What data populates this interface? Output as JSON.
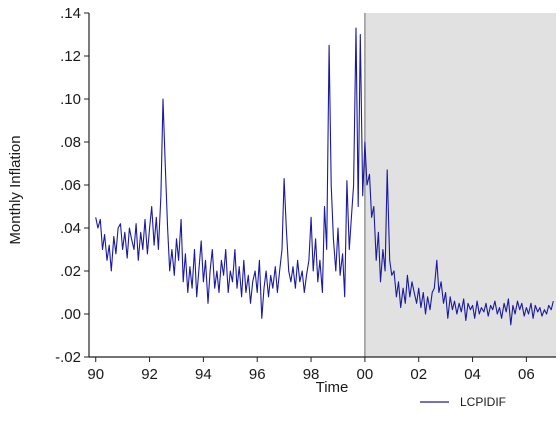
{
  "chart_data": {
    "type": "line",
    "title": "",
    "xlabel": "Time",
    "ylabel": "Monthly Inflation",
    "xlim": [
      1989.75,
      2007.1
    ],
    "ylim": [
      -0.02,
      0.14
    ],
    "x_ticks": [
      {
        "value": 1990,
        "label": "90"
      },
      {
        "value": 1992,
        "label": "92"
      },
      {
        "value": 1994,
        "label": "94"
      },
      {
        "value": 1996,
        "label": "96"
      },
      {
        "value": 1998,
        "label": "98"
      },
      {
        "value": 2000,
        "label": "00"
      },
      {
        "value": 2002,
        "label": "02"
      },
      {
        "value": 2004,
        "label": "04"
      },
      {
        "value": 2006,
        "label": "06"
      }
    ],
    "y_ticks": [
      {
        "value": 0.14,
        "label": ".14"
      },
      {
        "value": 0.12,
        "label": ".12"
      },
      {
        "value": 0.1,
        "label": ".10"
      },
      {
        "value": 0.08,
        "label": ".08"
      },
      {
        "value": 0.06,
        "label": ".06"
      },
      {
        "value": 0.04,
        "label": ".04"
      },
      {
        "value": 0.02,
        "label": ".02"
      },
      {
        "value": 0.0,
        "label": ".00"
      },
      {
        "value": -0.02,
        "label": "-.02"
      }
    ],
    "shaded_region": {
      "x_start": 2000.0,
      "x_end": 2007.1,
      "color": "#e1e1e1"
    },
    "grid": false,
    "legend_position": "bottom-right",
    "series": [
      {
        "name": "LCPIDIF",
        "color": "#1a1aa0",
        "points": [
          [
            1990.0,
            0.045
          ],
          [
            1990.08,
            0.04
          ],
          [
            1990.17,
            0.044
          ],
          [
            1990.25,
            0.03
          ],
          [
            1990.33,
            0.037
          ],
          [
            1990.42,
            0.025
          ],
          [
            1990.5,
            0.032
          ],
          [
            1990.58,
            0.02
          ],
          [
            1990.67,
            0.036
          ],
          [
            1990.75,
            0.028
          ],
          [
            1990.83,
            0.04
          ],
          [
            1990.92,
            0.042
          ],
          [
            1991.0,
            0.03
          ],
          [
            1991.08,
            0.038
          ],
          [
            1991.17,
            0.026
          ],
          [
            1991.25,
            0.04
          ],
          [
            1991.33,
            0.035
          ],
          [
            1991.42,
            0.03
          ],
          [
            1991.5,
            0.042
          ],
          [
            1991.58,
            0.025
          ],
          [
            1991.67,
            0.038
          ],
          [
            1991.75,
            0.03
          ],
          [
            1991.83,
            0.044
          ],
          [
            1991.92,
            0.028
          ],
          [
            1992.0,
            0.04
          ],
          [
            1992.08,
            0.05
          ],
          [
            1992.17,
            0.032
          ],
          [
            1992.25,
            0.045
          ],
          [
            1992.33,
            0.03
          ],
          [
            1992.42,
            0.055
          ],
          [
            1992.5,
            0.1
          ],
          [
            1992.58,
            0.07
          ],
          [
            1992.67,
            0.04
          ],
          [
            1992.75,
            0.02
          ],
          [
            1992.83,
            0.03
          ],
          [
            1992.92,
            0.018
          ],
          [
            1993.0,
            0.035
          ],
          [
            1993.08,
            0.025
          ],
          [
            1993.17,
            0.044
          ],
          [
            1993.25,
            0.015
          ],
          [
            1993.33,
            0.028
          ],
          [
            1993.42,
            0.01
          ],
          [
            1993.5,
            0.022
          ],
          [
            1993.58,
            0.012
          ],
          [
            1993.67,
            0.03
          ],
          [
            1993.75,
            0.008
          ],
          [
            1993.83,
            0.02
          ],
          [
            1993.92,
            0.034
          ],
          [
            1994.0,
            0.015
          ],
          [
            1994.08,
            0.025
          ],
          [
            1994.17,
            0.005
          ],
          [
            1994.25,
            0.02
          ],
          [
            1994.33,
            0.03
          ],
          [
            1994.42,
            0.012
          ],
          [
            1994.5,
            0.02
          ],
          [
            1994.58,
            0.01
          ],
          [
            1994.67,
            0.025
          ],
          [
            1994.75,
            0.018
          ],
          [
            1994.83,
            0.03
          ],
          [
            1994.92,
            0.01
          ],
          [
            1995.0,
            0.02
          ],
          [
            1995.08,
            0.015
          ],
          [
            1995.17,
            0.03
          ],
          [
            1995.25,
            0.012
          ],
          [
            1995.33,
            0.022
          ],
          [
            1995.42,
            0.008
          ],
          [
            1995.5,
            0.025
          ],
          [
            1995.58,
            0.01
          ],
          [
            1995.67,
            0.018
          ],
          [
            1995.75,
            0.005
          ],
          [
            1995.83,
            0.015
          ],
          [
            1995.92,
            0.02
          ],
          [
            1996.0,
            0.01
          ],
          [
            1996.08,
            0.025
          ],
          [
            1996.17,
            -0.002
          ],
          [
            1996.25,
            0.012
          ],
          [
            1996.33,
            0.02
          ],
          [
            1996.42,
            0.008
          ],
          [
            1996.5,
            0.018
          ],
          [
            1996.58,
            0.012
          ],
          [
            1996.67,
            0.022
          ],
          [
            1996.75,
            0.01
          ],
          [
            1996.83,
            0.02
          ],
          [
            1996.92,
            0.03
          ],
          [
            1997.0,
            0.063
          ],
          [
            1997.08,
            0.04
          ],
          [
            1997.17,
            0.02
          ],
          [
            1997.25,
            0.015
          ],
          [
            1997.33,
            0.022
          ],
          [
            1997.42,
            0.012
          ],
          [
            1997.5,
            0.025
          ],
          [
            1997.58,
            0.015
          ],
          [
            1997.67,
            0.02
          ],
          [
            1997.75,
            0.01
          ],
          [
            1997.83,
            0.018
          ],
          [
            1997.92,
            0.025
          ],
          [
            1998.0,
            0.045
          ],
          [
            1998.08,
            0.02
          ],
          [
            1998.17,
            0.035
          ],
          [
            1998.25,
            0.015
          ],
          [
            1998.33,
            0.025
          ],
          [
            1998.42,
            0.01
          ],
          [
            1998.5,
            0.05
          ],
          [
            1998.58,
            0.03
          ],
          [
            1998.67,
            0.125
          ],
          [
            1998.75,
            0.06
          ],
          [
            1998.83,
            0.035
          ],
          [
            1998.92,
            0.02
          ],
          [
            1999.0,
            0.04
          ],
          [
            1999.08,
            0.018
          ],
          [
            1999.17,
            0.028
          ],
          [
            1999.25,
            0.008
          ],
          [
            1999.33,
            0.062
          ],
          [
            1999.42,
            0.03
          ],
          [
            1999.5,
            0.045
          ],
          [
            1999.58,
            0.06
          ],
          [
            1999.67,
            0.133
          ],
          [
            1999.75,
            0.05
          ],
          [
            1999.83,
            0.13
          ],
          [
            1999.92,
            0.055
          ],
          [
            2000.0,
            0.08
          ],
          [
            2000.08,
            0.06
          ],
          [
            2000.17,
            0.065
          ],
          [
            2000.25,
            0.045
          ],
          [
            2000.33,
            0.05
          ],
          [
            2000.42,
            0.025
          ],
          [
            2000.5,
            0.038
          ],
          [
            2000.58,
            0.015
          ],
          [
            2000.67,
            0.03
          ],
          [
            2000.75,
            0.02
          ],
          [
            2000.83,
            0.067
          ],
          [
            2000.92,
            0.025
          ],
          [
            2001.0,
            0.018
          ],
          [
            2001.08,
            0.02
          ],
          [
            2001.17,
            0.008
          ],
          [
            2001.25,
            0.015
          ],
          [
            2001.33,
            0.003
          ],
          [
            2001.42,
            0.012
          ],
          [
            2001.5,
            0.005
          ],
          [
            2001.58,
            0.018
          ],
          [
            2001.67,
            0.008
          ],
          [
            2001.75,
            0.015
          ],
          [
            2001.83,
            0.01
          ],
          [
            2001.92,
            0.005
          ],
          [
            2002.0,
            0.012
          ],
          [
            2002.08,
            0.003
          ],
          [
            2002.17,
            0.01
          ],
          [
            2002.25,
            0.0
          ],
          [
            2002.33,
            0.008
          ],
          [
            2002.42,
            0.002
          ],
          [
            2002.5,
            0.01
          ],
          [
            2002.58,
            0.012
          ],
          [
            2002.67,
            0.025
          ],
          [
            2002.75,
            0.01
          ],
          [
            2002.83,
            0.015
          ],
          [
            2002.92,
            0.005
          ],
          [
            2003.0,
            0.01
          ],
          [
            2003.08,
            -0.002
          ],
          [
            2003.17,
            0.008
          ],
          [
            2003.25,
            0.002
          ],
          [
            2003.33,
            0.006
          ],
          [
            2003.42,
            0.0
          ],
          [
            2003.5,
            0.005
          ],
          [
            2003.58,
            0.001
          ],
          [
            2003.67,
            0.007
          ],
          [
            2003.75,
            -0.003
          ],
          [
            2003.83,
            0.005
          ],
          [
            2003.92,
            0.002
          ],
          [
            2004.0,
            0.004
          ],
          [
            2004.08,
            -0.002
          ],
          [
            2004.17,
            0.006
          ],
          [
            2004.25,
            0.0
          ],
          [
            2004.33,
            0.003
          ],
          [
            2004.42,
            0.001
          ],
          [
            2004.5,
            0.005
          ],
          [
            2004.58,
            -0.001
          ],
          [
            2004.67,
            0.004
          ],
          [
            2004.75,
            0.002
          ],
          [
            2004.83,
            0.006
          ],
          [
            2004.92,
            0.0
          ],
          [
            2005.0,
            0.003
          ],
          [
            2005.08,
            -0.002
          ],
          [
            2005.17,
            0.005
          ],
          [
            2005.25,
            0.001
          ],
          [
            2005.33,
            0.007
          ],
          [
            2005.42,
            -0.005
          ],
          [
            2005.5,
            0.004
          ],
          [
            2005.58,
            0.0
          ],
          [
            2005.67,
            0.006
          ],
          [
            2005.75,
            0.002
          ],
          [
            2005.83,
            0.005
          ],
          [
            2005.92,
            -0.001
          ],
          [
            2006.0,
            0.003
          ],
          [
            2006.08,
            0.0
          ],
          [
            2006.17,
            0.005
          ],
          [
            2006.25,
            -0.002
          ],
          [
            2006.33,
            0.004
          ],
          [
            2006.42,
            0.001
          ],
          [
            2006.5,
            0.003
          ],
          [
            2006.58,
            -0.001
          ],
          [
            2006.67,
            0.002
          ],
          [
            2006.75,
            0.0
          ],
          [
            2006.83,
            0.004
          ],
          [
            2006.92,
            0.002
          ],
          [
            2007.0,
            0.006
          ]
        ]
      }
    ]
  }
}
